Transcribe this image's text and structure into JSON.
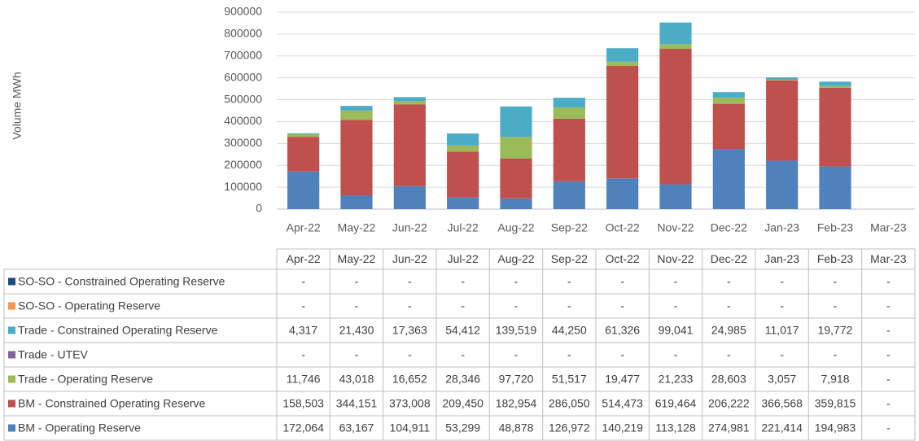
{
  "chart_data": {
    "type": "bar",
    "stacked": true,
    "y_label": "Volume MWh",
    "categories": [
      "Apr-22",
      "May-22",
      "Jun-22",
      "Jul-22",
      "Aug-22",
      "Sep-22",
      "Oct-22",
      "Nov-22",
      "Dec-22",
      "Jan-23",
      "Feb-23",
      "Mar-23"
    ],
    "ylim": [
      0,
      900000
    ],
    "yticks": [
      0,
      100000,
      200000,
      300000,
      400000,
      500000,
      600000,
      700000,
      800000,
      900000
    ],
    "grid": true,
    "series": [
      {
        "name": "SO-SO - Constrained Operating Reserve",
        "color": "#1f497d",
        "values": [
          null,
          null,
          null,
          null,
          null,
          null,
          null,
          null,
          null,
          null,
          null,
          null
        ],
        "value_labels": [
          "-",
          "-",
          "-",
          "-",
          "-",
          "-",
          "-",
          "-",
          "-",
          "-",
          "-",
          "-"
        ]
      },
      {
        "name": "SO-SO - Operating Reserve",
        "color": "#f79646",
        "values": [
          null,
          null,
          null,
          null,
          null,
          null,
          null,
          null,
          null,
          null,
          null,
          null
        ],
        "value_labels": [
          "-",
          "-",
          "-",
          "-",
          "-",
          "-",
          "-",
          "-",
          "-",
          "-",
          "-",
          "-"
        ]
      },
      {
        "name": "Trade - Constrained Operating Reserve",
        "color": "#4bacc6",
        "values": [
          4317,
          21430,
          17363,
          54412,
          139519,
          44250,
          61326,
          99041,
          24985,
          11017,
          19772,
          null
        ],
        "value_labels": [
          "4,317",
          "21,430",
          "17,363",
          "54,412",
          "139,519",
          "44,250",
          "61,326",
          "99,041",
          "24,985",
          "11,017",
          "19,772",
          "-"
        ]
      },
      {
        "name": "Trade - UTEV",
        "color": "#8064a2",
        "values": [
          null,
          null,
          null,
          null,
          null,
          null,
          null,
          null,
          null,
          null,
          null,
          null
        ],
        "value_labels": [
          "-",
          "-",
          "-",
          "-",
          "-",
          "-",
          "-",
          "-",
          "-",
          "-",
          "-",
          "-"
        ]
      },
      {
        "name": "Trade - Operating Reserve",
        "color": "#9bbb59",
        "values": [
          11746,
          43018,
          16652,
          28346,
          97720,
          51517,
          19477,
          21233,
          28603,
          3057,
          7918,
          null
        ],
        "value_labels": [
          "11,746",
          "43,018",
          "16,652",
          "28,346",
          "97,720",
          "51,517",
          "19,477",
          "21,233",
          "28,603",
          "3,057",
          "7,918",
          "-"
        ]
      },
      {
        "name": "BM - Constrained Operating Reserve",
        "color": "#c0504d",
        "values": [
          158503,
          344151,
          373008,
          209450,
          182954,
          286050,
          514473,
          619464,
          206222,
          366568,
          359815,
          null
        ],
        "value_labels": [
          "158,503",
          "344,151",
          "373,008",
          "209,450",
          "182,954",
          "286,050",
          "514,473",
          "619,464",
          "206,222",
          "366,568",
          "359,815",
          "-"
        ]
      },
      {
        "name": "BM - Operating Reserve",
        "color": "#4f81bd",
        "values": [
          172064,
          63167,
          104911,
          53299,
          48878,
          126972,
          140219,
          113128,
          274981,
          221414,
          194983,
          null
        ],
        "value_labels": [
          "172,064",
          "63,167",
          "104,911",
          "53,299",
          "48,878",
          "126,972",
          "140,219",
          "113,128",
          "274,981",
          "221,414",
          "194,983",
          "-"
        ]
      }
    ]
  }
}
